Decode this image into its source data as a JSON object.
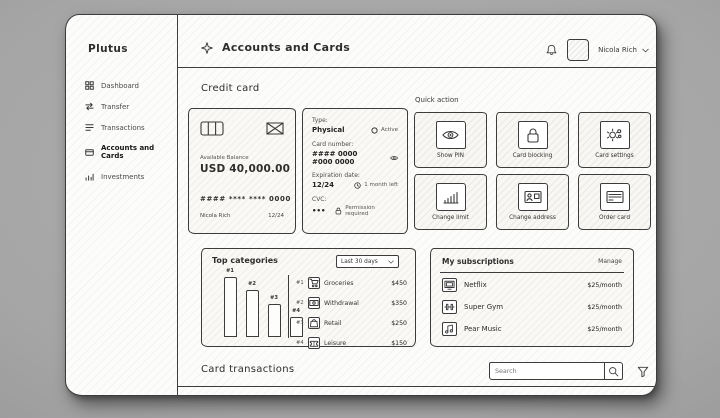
{
  "sidebar": {
    "brand": "Plutus",
    "items": [
      {
        "label": "Dashboard"
      },
      {
        "label": "Transfer"
      },
      {
        "label": "Transactions"
      },
      {
        "label": "Accounts and Cards"
      },
      {
        "label": "Investments"
      }
    ]
  },
  "header": {
    "title": "Accounts and Cards",
    "user_name": "Nicola Rich"
  },
  "credit_card": {
    "section_title": "Credit card",
    "balance_label": "Available Balance",
    "balance_value": "USD 40,000.00",
    "number_masked": "#### **** **** 0000",
    "holder_name": "Nicola Rich",
    "expiry": "12/24"
  },
  "card_details": {
    "type_label": "Type:",
    "type_value": "Physical",
    "type_status": "Active",
    "number_label": "Card number:",
    "number_value": "#### 0000 #000 0000",
    "expiry_label": "Expiration date:",
    "expiry_value": "12/24",
    "expiry_note": "1 month left",
    "cvc_label": "CVC:",
    "cvc_value": "•••",
    "cvc_note": "Permission required"
  },
  "quick_actions": {
    "title": "Quick action",
    "items": [
      {
        "label": "Show PIN",
        "icon": "eye-icon"
      },
      {
        "label": "Card blocking",
        "icon": "lock-icon"
      },
      {
        "label": "Card settings",
        "icon": "gear-icon"
      },
      {
        "label": "Change limit",
        "icon": "chart-bars-icon"
      },
      {
        "label": "Change address",
        "icon": "id-card-icon"
      },
      {
        "label": "Order card",
        "icon": "credit-card-icon"
      }
    ]
  },
  "top_categories": {
    "title": "Top categories",
    "range_selector": "Last 30 days",
    "items": [
      {
        "rank": "#1",
        "name": "Groceries",
        "amount": "$450",
        "icon": "cart-icon"
      },
      {
        "rank": "#2",
        "name": "Withdrawal",
        "amount": "$350",
        "icon": "banknote-icon"
      },
      {
        "rank": "#3",
        "name": "Retail",
        "amount": "$250",
        "icon": "shopping-bag-icon"
      },
      {
        "rank": "#4",
        "name": "Leisure",
        "amount": "$150",
        "icon": "ticket-icon"
      }
    ]
  },
  "chart_data": {
    "type": "bar",
    "title": "Top categories",
    "range": "Last 30 days",
    "categories": [
      "Groceries",
      "Withdrawal",
      "Retail",
      "Leisure"
    ],
    "bar_labels": [
      "#1",
      "#2",
      "#3",
      "#4"
    ],
    "values": [
      450,
      350,
      250,
      150
    ],
    "ylim": [
      0,
      500
    ],
    "legend_position": "right",
    "grid": false
  },
  "subscriptions": {
    "title": "My subscriptions",
    "manage_label": "Manage",
    "items": [
      {
        "name": "Netflix",
        "price": "$25/month",
        "icon": "tv-icon"
      },
      {
        "name": "Super Gym",
        "price": "$25/month",
        "icon": "dumbbell-icon"
      },
      {
        "name": "Pear Music",
        "price": "$25/month",
        "icon": "music-note-icon"
      }
    ]
  },
  "transactions": {
    "title": "Card transactions",
    "search_placeholder": "Search"
  },
  "colors": {
    "ink": "#3a3a3a",
    "paper": "#fcfcfa",
    "backdrop": "#a5a5a5"
  }
}
